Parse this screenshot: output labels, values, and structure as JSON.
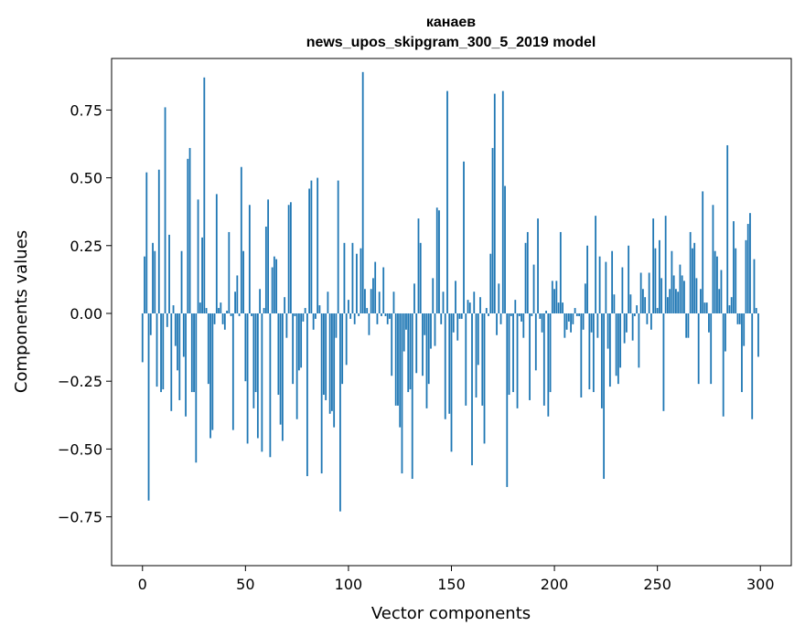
{
  "chart_data": {
    "type": "bar",
    "title": "канаев",
    "subtitle": "news_upos_skipgram_300_5_2019 model",
    "xlabel": "Vector components",
    "ylabel": "Components values",
    "xlim": [
      -15,
      315
    ],
    "ylim": [
      -0.93,
      0.94
    ],
    "x_ticks": [
      0,
      50,
      100,
      150,
      200,
      250,
      300
    ],
    "y_ticks": [
      -0.75,
      -0.5,
      -0.25,
      0.0,
      0.25,
      0.5,
      0.75
    ],
    "x_tick_labels": [
      "0",
      "50",
      "100",
      "150",
      "200",
      "250",
      "300"
    ],
    "y_tick_labels": [
      "−0.75",
      "−0.50",
      "−0.25",
      "0.00",
      "0.25",
      "0.50",
      "0.75"
    ],
    "bar_color": "#1f77b4",
    "grid": false,
    "values": [
      -0.18,
      0.21,
      0.52,
      -0.69,
      -0.08,
      0.26,
      0.23,
      -0.27,
      0.53,
      -0.29,
      -0.28,
      0.76,
      -0.05,
      0.29,
      -0.36,
      0.03,
      -0.12,
      -0.21,
      -0.32,
      0.23,
      -0.16,
      -0.38,
      0.57,
      0.61,
      -0.29,
      -0.29,
      -0.55,
      0.42,
      0.04,
      0.28,
      0.87,
      0.02,
      -0.26,
      -0.46,
      -0.43,
      -0.04,
      0.44,
      0.02,
      0.04,
      -0.04,
      -0.06,
      0.01,
      0.3,
      -0.01,
      -0.43,
      0.08,
      0.14,
      -0.01,
      0.54,
      0.23,
      -0.25,
      -0.48,
      0.4,
      -0.01,
      -0.35,
      -0.29,
      -0.46,
      0.09,
      -0.51,
      0.02,
      0.32,
      0.42,
      -0.53,
      0.17,
      0.21,
      0.2,
      -0.3,
      -0.41,
      -0.47,
      0.06,
      -0.09,
      0.4,
      0.41,
      -0.26,
      -0.01,
      -0.39,
      -0.21,
      -0.2,
      -0.03,
      0.02,
      -0.6,
      0.46,
      0.49,
      -0.06,
      -0.02,
      0.5,
      0.03,
      -0.59,
      -0.3,
      -0.32,
      0.08,
      -0.37,
      -0.36,
      -0.42,
      -0.09,
      0.49,
      -0.73,
      -0.26,
      0.26,
      -0.19,
      0.05,
      -0.02,
      0.26,
      -0.04,
      0.22,
      -0.01,
      0.24,
      0.89,
      0.09,
      0.02,
      -0.08,
      0.09,
      0.13,
      0.19,
      -0.04,
      0.08,
      -0.01,
      0.17,
      -0.01,
      -0.04,
      -0.02,
      -0.23,
      0.08,
      -0.34,
      -0.34,
      -0.42,
      -0.59,
      -0.14,
      -0.06,
      -0.29,
      -0.28,
      -0.61,
      0.11,
      -0.22,
      0.35,
      0.26,
      -0.23,
      -0.08,
      -0.35,
      -0.26,
      -0.13,
      0.13,
      -0.12,
      0.39,
      0.38,
      -0.04,
      0.08,
      -0.39,
      0.82,
      -0.37,
      -0.51,
      -0.07,
      0.12,
      -0.1,
      -0.02,
      -0.02,
      0.56,
      -0.34,
      0.05,
      0.04,
      -0.56,
      0.08,
      -0.31,
      -0.19,
      0.06,
      -0.34,
      -0.48,
      0.02,
      -0.01,
      0.22,
      0.61,
      0.81,
      -0.08,
      0.11,
      -0.04,
      0.82,
      0.47,
      -0.64,
      -0.3,
      -0.01,
      -0.29,
      0.05,
      -0.35,
      -0.01,
      -0.03,
      -0.09,
      0.26,
      0.3,
      -0.32,
      -0.01,
      0.18,
      -0.21,
      0.35,
      -0.02,
      -0.07,
      -0.34,
      0.01,
      -0.38,
      -0.29,
      0.12,
      0.09,
      0.12,
      0.04,
      0.3,
      0.04,
      -0.09,
      -0.06,
      -0.03,
      -0.07,
      -0.04,
      0.02,
      -0.01,
      -0.01,
      -0.31,
      -0.06,
      0.11,
      0.25,
      -0.28,
      -0.07,
      -0.29,
      0.36,
      -0.09,
      0.21,
      -0.35,
      -0.61,
      0.19,
      -0.13,
      -0.27,
      0.23,
      0.07,
      -0.23,
      -0.26,
      -0.2,
      0.17,
      -0.11,
      -0.07,
      0.25,
      0.07,
      -0.1,
      -0.01,
      0.03,
      -0.2,
      0.15,
      0.09,
      0.06,
      -0.04,
      0.15,
      -0.06,
      0.35,
      0.24,
      0.02,
      0.27,
      0.13,
      -0.36,
      0.36,
      0.06,
      0.09,
      0.23,
      0.14,
      0.09,
      0.08,
      0.18,
      0.14,
      0.12,
      -0.09,
      -0.09,
      0.3,
      0.24,
      0.26,
      0.13,
      -0.26,
      0.09,
      0.45,
      0.04,
      0.04,
      -0.07,
      -0.26,
      0.4,
      0.23,
      0.21,
      0.09,
      0.16,
      -0.38,
      -0.14,
      0.62,
      0.03,
      0.06,
      0.34,
      0.24,
      -0.04,
      -0.04,
      -0.29,
      -0.12,
      0.27,
      0.33,
      0.37,
      -0.39,
      0.2,
      0.02,
      -0.16
    ]
  }
}
